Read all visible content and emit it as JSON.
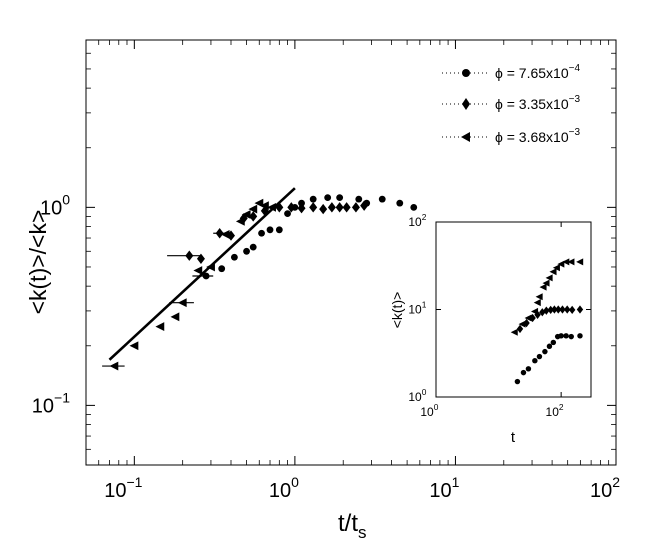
{
  "chart_data": [
    {
      "type": "scatter",
      "xscale": "log",
      "yscale": "log",
      "xlim": [
        0.05,
        100
      ],
      "ylim": [
        0.05,
        7
      ],
      "xlabel_main": "t/t",
      "xlabel_sub": "s",
      "ylabel": "<k(t)>/<k>",
      "xticks": [
        {
          "value": 0.1,
          "base": "10",
          "exp": "−1"
        },
        {
          "value": 1,
          "base": "10",
          "exp": "0"
        },
        {
          "value": 10,
          "base": "10",
          "exp": "1"
        },
        {
          "value": 100,
          "base": "10",
          "exp": "2"
        }
      ],
      "yticks": [
        {
          "value": 0.1,
          "base": "10",
          "exp": "−1"
        },
        {
          "value": 1,
          "base": "10",
          "exp": "0"
        }
      ],
      "legend_position": "top-right",
      "series": [
        {
          "name_prefix": "ϕ = 7.65x10",
          "name_exp": "−4",
          "marker": "circle",
          "points": [
            {
              "x": 0.28,
              "y": 0.45
            },
            {
              "x": 0.35,
              "y": 0.49
            },
            {
              "x": 0.42,
              "y": 0.56
            },
            {
              "x": 0.5,
              "y": 0.6
            },
            {
              "x": 0.55,
              "y": 0.63
            },
            {
              "x": 0.62,
              "y": 0.74
            },
            {
              "x": 0.7,
              "y": 0.77
            },
            {
              "x": 0.8,
              "y": 0.77
            },
            {
              "x": 0.9,
              "y": 0.93
            },
            {
              "x": 1.0,
              "y": 1.0
            },
            {
              "x": 1.1,
              "y": 1.05
            },
            {
              "x": 1.3,
              "y": 1.1
            },
            {
              "x": 1.6,
              "y": 1.12
            },
            {
              "x": 1.9,
              "y": 1.12
            },
            {
              "x": 2.5,
              "y": 1.1
            },
            {
              "x": 2.8,
              "y": 1.05
            },
            {
              "x": 3.5,
              "y": 1.1
            },
            {
              "x": 4.5,
              "y": 1.05
            },
            {
              "x": 5.5,
              "y": 1.0
            }
          ],
          "hbars": [
            {
              "x": 0.27,
              "xerr": 0.04,
              "y": 0.45
            }
          ]
        },
        {
          "name_prefix": "ϕ = 3.35x10",
          "name_exp": "−3",
          "marker": "diamond",
          "points": [
            {
              "x": 0.22,
              "y": 0.57
            },
            {
              "x": 0.26,
              "y": 0.55
            },
            {
              "x": 0.34,
              "y": 0.74
            },
            {
              "x": 0.4,
              "y": 0.72
            },
            {
              "x": 0.48,
              "y": 0.88
            },
            {
              "x": 0.55,
              "y": 0.9
            },
            {
              "x": 0.65,
              "y": 0.96
            },
            {
              "x": 0.8,
              "y": 1.0
            },
            {
              "x": 0.95,
              "y": 1.0
            },
            {
              "x": 1.1,
              "y": 0.99
            },
            {
              "x": 1.3,
              "y": 1.0
            },
            {
              "x": 1.5,
              "y": 0.98
            },
            {
              "x": 1.7,
              "y": 1.0
            },
            {
              "x": 1.9,
              "y": 1.0
            },
            {
              "x": 2.1,
              "y": 1.0
            },
            {
              "x": 2.4,
              "y": 1.0
            },
            {
              "x": 2.7,
              "y": 1.02
            }
          ],
          "hbars": [
            {
              "x": 0.21,
              "xerr": 0.05,
              "y": 0.57
            },
            {
              "x": 0.34,
              "xerr": 0.03,
              "y": 0.74
            }
          ]
        },
        {
          "name_prefix": "ϕ = 3.68x10",
          "name_exp": "−3",
          "marker": "triangle-left",
          "points": [
            {
              "x": 0.075,
              "y": 0.158
            },
            {
              "x": 0.1,
              "y": 0.2
            },
            {
              "x": 0.145,
              "y": 0.25
            },
            {
              "x": 0.18,
              "y": 0.28
            },
            {
              "x": 0.2,
              "y": 0.33
            },
            {
              "x": 0.25,
              "y": 0.48
            },
            {
              "x": 0.3,
              "y": 0.5
            },
            {
              "x": 0.37,
              "y": 0.73
            },
            {
              "x": 0.46,
              "y": 0.85
            },
            {
              "x": 0.5,
              "y": 0.92
            },
            {
              "x": 0.55,
              "y": 0.98
            },
            {
              "x": 0.6,
              "y": 1.05
            },
            {
              "x": 0.65,
              "y": 1.02
            },
            {
              "x": 0.72,
              "y": 1.0
            }
          ],
          "hbars": [
            {
              "x": 0.075,
              "xerr": 0.012,
              "y": 0.158
            },
            {
              "x": 0.2,
              "xerr": 0.035,
              "y": 0.33
            }
          ]
        }
      ],
      "fit_line": {
        "x": [
          0.07,
          1.0
        ],
        "y": [
          0.17,
          1.25
        ]
      }
    },
    {
      "type": "scatter",
      "role": "inset",
      "xscale": "log",
      "yscale": "log",
      "xlim": [
        1,
        300
      ],
      "ylim": [
        1,
        100
      ],
      "xlabel": "t",
      "ylabel": "<k(t)>",
      "xticks": [
        {
          "value": 1,
          "base": "10",
          "exp": "0"
        },
        {
          "value": 100,
          "base": "10",
          "exp": "2"
        }
      ],
      "yticks": [
        {
          "value": 1,
          "base": "10",
          "exp": "0"
        },
        {
          "value": 10,
          "base": "10",
          "exp": "1"
        },
        {
          "value": 100,
          "base": "10",
          "exp": "2"
        }
      ],
      "series": [
        {
          "marker": "circle",
          "points": [
            {
              "x": 20,
              "y": 1.5
            },
            {
              "x": 25,
              "y": 1.9
            },
            {
              "x": 30,
              "y": 2.1
            },
            {
              "x": 38,
              "y": 2.6
            },
            {
              "x": 45,
              "y": 2.9
            },
            {
              "x": 55,
              "y": 3.3
            },
            {
              "x": 65,
              "y": 3.8
            },
            {
              "x": 75,
              "y": 4.2
            },
            {
              "x": 88,
              "y": 4.9
            },
            {
              "x": 100,
              "y": 5.0
            },
            {
              "x": 120,
              "y": 5.0
            },
            {
              "x": 145,
              "y": 4.9
            },
            {
              "x": 200,
              "y": 5.0
            }
          ]
        },
        {
          "marker": "diamond",
          "points": [
            {
              "x": 22,
              "y": 6.0
            },
            {
              "x": 28,
              "y": 7.0
            },
            {
              "x": 35,
              "y": 8.0
            },
            {
              "x": 42,
              "y": 8.7
            },
            {
              "x": 50,
              "y": 9.3
            },
            {
              "x": 58,
              "y": 9.7
            },
            {
              "x": 68,
              "y": 9.9
            },
            {
              "x": 78,
              "y": 10
            },
            {
              "x": 90,
              "y": 10
            },
            {
              "x": 105,
              "y": 10
            },
            {
              "x": 125,
              "y": 10
            },
            {
              "x": 150,
              "y": 9.9
            },
            {
              "x": 200,
              "y": 10
            }
          ]
        },
        {
          "marker": "triangle-left",
          "points": [
            {
              "x": 18,
              "y": 5.5
            },
            {
              "x": 24,
              "y": 6.8
            },
            {
              "x": 30,
              "y": 8.0
            },
            {
              "x": 38,
              "y": 9.5
            },
            {
              "x": 42,
              "y": 12
            },
            {
              "x": 45,
              "y": 14
            },
            {
              "x": 52,
              "y": 18
            },
            {
              "x": 58,
              "y": 20
            },
            {
              "x": 65,
              "y": 23
            },
            {
              "x": 75,
              "y": 27
            },
            {
              "x": 85,
              "y": 30
            },
            {
              "x": 100,
              "y": 33
            },
            {
              "x": 120,
              "y": 35
            },
            {
              "x": 145,
              "y": 35
            },
            {
              "x": 200,
              "y": 35
            }
          ]
        }
      ]
    }
  ]
}
